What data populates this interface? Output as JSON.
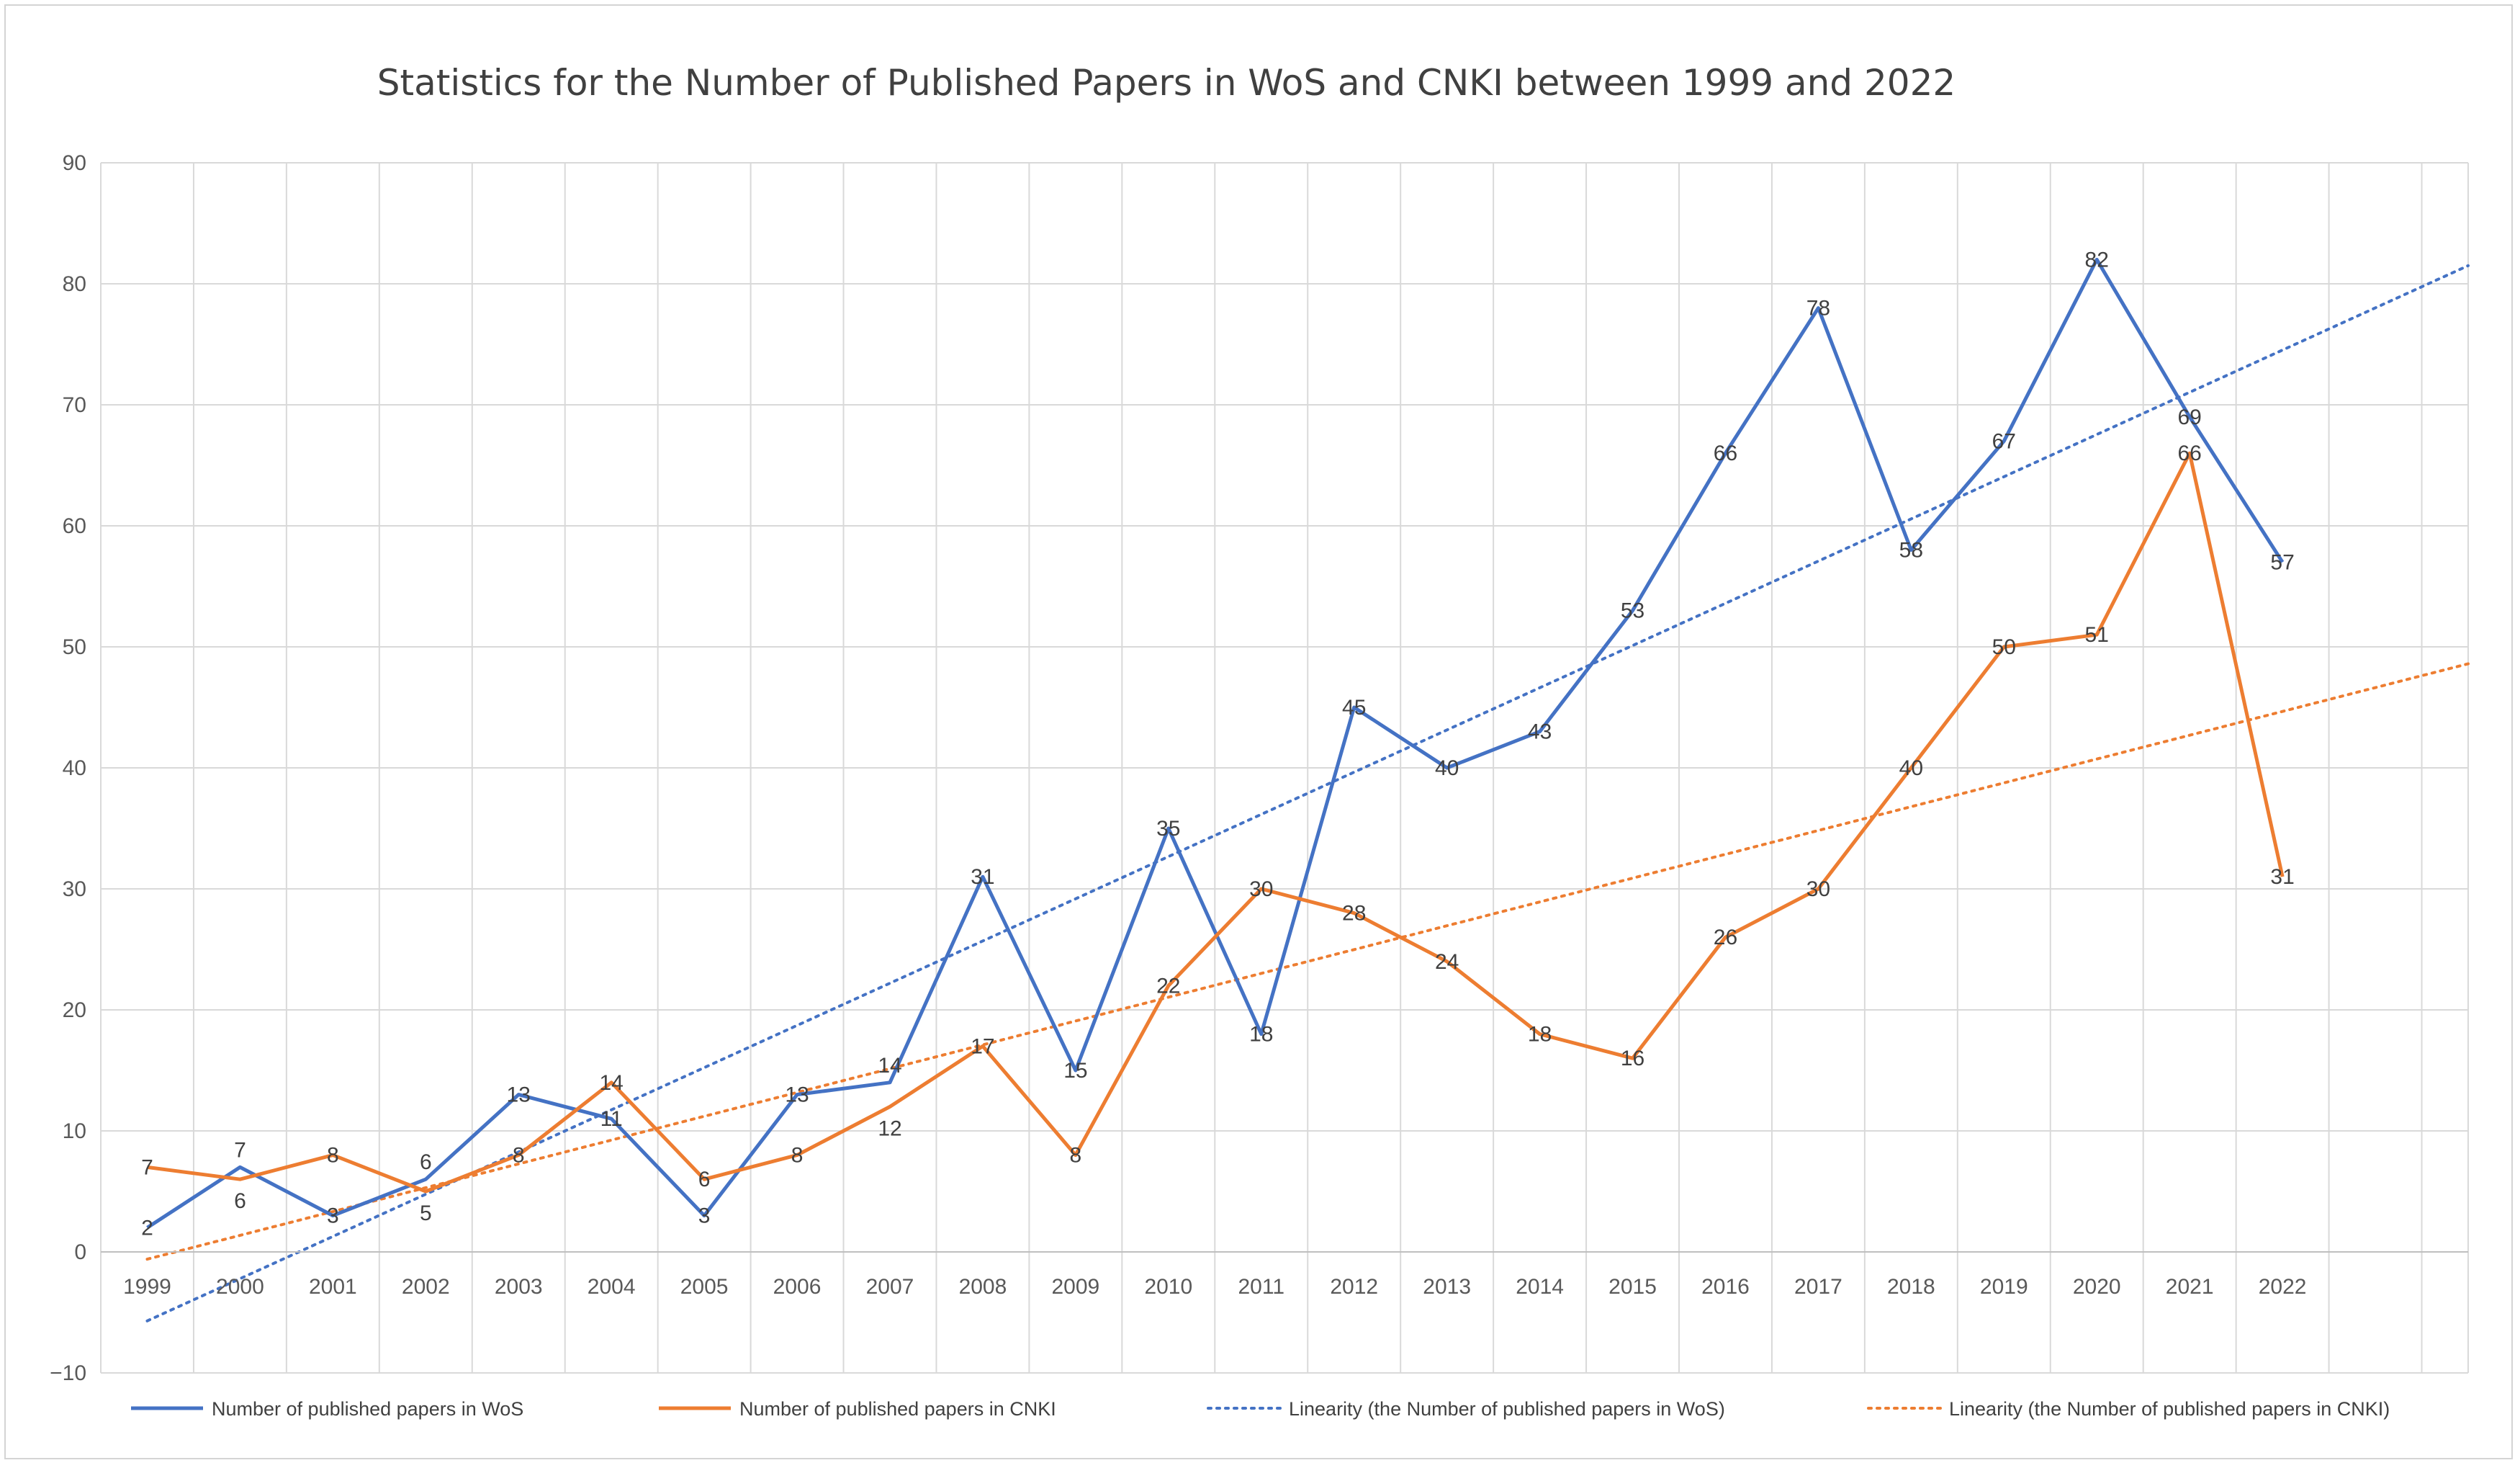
{
  "chart_data": {
    "type": "line",
    "title": "Statistics for the Number of Published Papers in WoS and CNKI between 1999 and 2022",
    "categories": [
      "1999",
      "2000",
      "2001",
      "2002",
      "2003",
      "2004",
      "2005",
      "2006",
      "2007",
      "2008",
      "2009",
      "2010",
      "2011",
      "2012",
      "2013",
      "2014",
      "2015",
      "2016",
      "2017",
      "2018",
      "2019",
      "2020",
      "2021",
      "2022"
    ],
    "ylim": [
      -10,
      90
    ],
    "yticks": [
      -10,
      0,
      10,
      20,
      30,
      40,
      50,
      60,
      70,
      80,
      90
    ],
    "ytick_labels": [
      "−10",
      "0",
      "10",
      "20",
      "30",
      "40",
      "50",
      "60",
      "70",
      "80",
      "90"
    ],
    "grid": true,
    "legend_position": "bottom",
    "series": [
      {
        "name": "Number of published papers in WoS",
        "color": "#4472C4",
        "style": "solid",
        "values": [
          2,
          7,
          3,
          6,
          13,
          11,
          3,
          13,
          14,
          31,
          15,
          35,
          18,
          45,
          40,
          43,
          53,
          66,
          78,
          58,
          67,
          82,
          69,
          57
        ]
      },
      {
        "name": "Number of published papers in CNKI",
        "color": "#ED7D31",
        "style": "solid",
        "values": [
          7,
          6,
          8,
          5,
          8,
          14,
          6,
          8,
          12,
          17,
          8,
          22,
          30,
          28,
          24,
          18,
          16,
          26,
          30,
          40,
          50,
          51,
          66,
          31
        ]
      }
    ],
    "trendlines": [
      {
        "name": "Linearity (the Number of published papers in WoS)",
        "color": "#4472C4",
        "style": "dotted",
        "x_range": [
          1,
          26
        ],
        "y_range": [
          -5.7,
          81.5
        ]
      },
      {
        "name": "Linearity (the Number of published papers in CNKI)",
        "color": "#ED7D31",
        "style": "dotted",
        "x_range": [
          1,
          26
        ],
        "y_range": [
          -0.6,
          48.6
        ]
      }
    ]
  }
}
